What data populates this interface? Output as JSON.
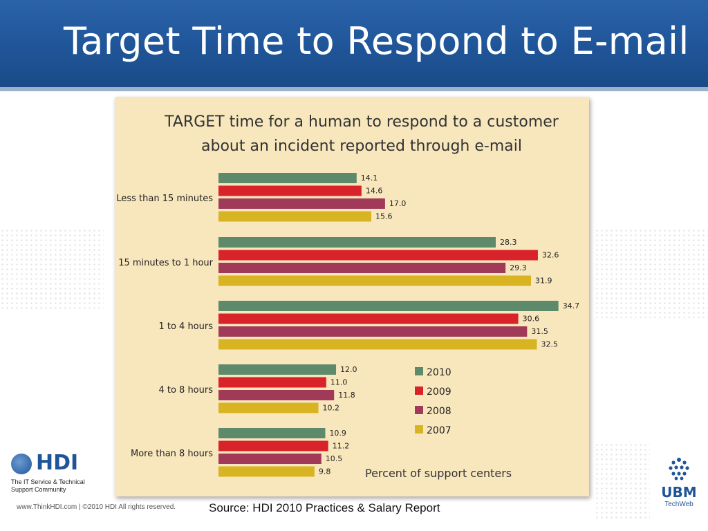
{
  "slide": {
    "title": "Target Time to Respond to E-mail",
    "source": "Source: HDI 2010 Practices & Salary Report",
    "footer_site": "www.ThinkHDI.com  |  ©2010 HDI  All rights reserved.",
    "hdi_logo": {
      "word": "HDI",
      "tagline": "The IT Service & Technical Support Community"
    },
    "ubm_logo": {
      "word": "UBM",
      "sub": "TechWeb"
    }
  },
  "chart_data": {
    "type": "bar",
    "orientation": "horizontal",
    "title_lines": [
      "TARGET time for a human to respond to a customer",
      "about an incident reported through e-mail"
    ],
    "xlabel": "Percent of support centers",
    "categories": [
      "Less than 15 minutes",
      "15 minutes to 1 hour",
      "1 to 4 hours",
      "4 to 8 hours",
      "More than 8 hours"
    ],
    "series": [
      {
        "name": "2010",
        "color": "#5e8a6c",
        "values": [
          14.1,
          28.3,
          34.7,
          12.0,
          10.9
        ],
        "labels": [
          "14.1",
          "28.3",
          "34.7",
          "12.0",
          "10.9"
        ]
      },
      {
        "name": "2009",
        "color": "#d8232a",
        "values": [
          14.6,
          32.6,
          30.6,
          11.0,
          11.2
        ],
        "labels": [
          "14.6",
          "32.6",
          "30.6",
          "11.0",
          "11.2"
        ]
      },
      {
        "name": "2008",
        "color": "#a03a58",
        "values": [
          17.0,
          29.3,
          31.5,
          11.8,
          10.5
        ],
        "labels": [
          "17.0",
          "29.3",
          "31.5",
          "11.8",
          "10.5"
        ]
      },
      {
        "name": "2007",
        "color": "#d8b423",
        "values": [
          15.6,
          31.9,
          32.5,
          10.2,
          9.8
        ],
        "labels": [
          "15.6",
          "31.9",
          "32.5",
          "10.2",
          "9.8"
        ]
      }
    ],
    "legend_position": "lower-right",
    "grid": false
  }
}
